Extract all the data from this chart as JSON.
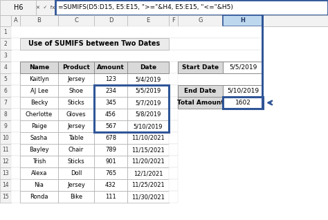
{
  "formula_bar_cell": "H6",
  "formula_bar_formula": "=SUMIFS(D5:D15, E5:E15, \">=\"&H4, E5:E15, \"<=\"&H5)",
  "title": "Use of SUMIFS between Two Dates",
  "col_headers": [
    "Name",
    "Product",
    "Amount",
    "Date"
  ],
  "rows": [
    [
      "Kaitlyn",
      "Jersey",
      "123",
      "5/4/2019"
    ],
    [
      "AJ Lee",
      "Shoe",
      "234",
      "5/5/2019"
    ],
    [
      "Becky",
      "Sticks",
      "345",
      "5/7/2019"
    ],
    [
      "Cherlotte",
      "Gloves",
      "456",
      "5/8/2019"
    ],
    [
      "Paige",
      "Jersey",
      "567",
      "5/10/2019"
    ],
    [
      "Sasha",
      "Table",
      "678",
      "11/10/2021"
    ],
    [
      "Bayley",
      "Chair",
      "789",
      "11/15/2021"
    ],
    [
      "Trish",
      "Sticks",
      "901",
      "11/20/2021"
    ],
    [
      "Alexa",
      "Doll",
      "765",
      "12/1/2021"
    ],
    [
      "Nia",
      "Jersey",
      "432",
      "11/25/2021"
    ],
    [
      "Ronda",
      "Bike",
      "111",
      "11/30/2021"
    ]
  ],
  "right_table": [
    [
      "Start Date",
      "5/5/2019"
    ],
    [
      "End Date",
      "5/10/2019"
    ],
    [
      "Total Amount",
      "1602"
    ]
  ],
  "bg_color": "#FFFFFF",
  "header_bg": "#D9D9D9",
  "title_bg": "#EBEBEB",
  "blue": "#2F5597",
  "dark_blue": "#1F3864",
  "col_h_bg": "#BDD7EE",
  "cell_border": "#AAAAAA",
  "row_header_bg": "#F2F2F2",
  "formula_bar_blue": "#2F5597"
}
